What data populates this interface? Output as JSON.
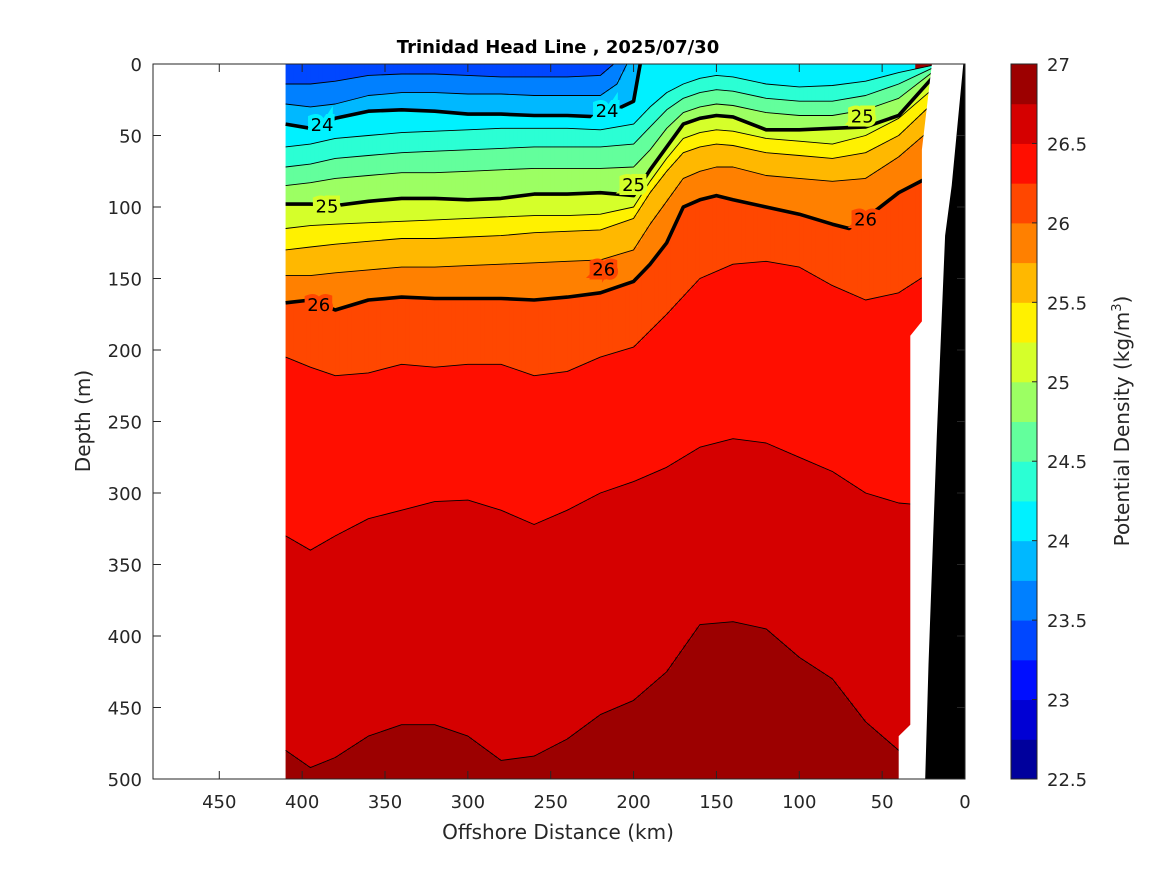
{
  "chart_data": {
    "type": "contour",
    "title": "Trinidad Head Line , 2025/07/30",
    "xlabel": "Offshore Distance (km)",
    "ylabel": "Depth (m)",
    "colorbar_label": "Potential Density (kg/m",
    "colorbar_label_superscript": "3",
    "colorbar_label_suffix": ")",
    "xlim": [
      490,
      0
    ],
    "x_reversed": true,
    "ylim": [
      0,
      500
    ],
    "y_reversed": true,
    "xticks": [
      450,
      400,
      350,
      300,
      250,
      200,
      150,
      100,
      50,
      0
    ],
    "yticks": [
      0,
      50,
      100,
      150,
      200,
      250,
      300,
      350,
      400,
      450,
      500
    ],
    "colorbar_range": [
      22.5,
      27
    ],
    "colorbar_step": 0.25,
    "colorbar_ticks": [
      22.5,
      23,
      23.5,
      24,
      24.5,
      25,
      25.5,
      26,
      26.5,
      27
    ],
    "colormap": "jet",
    "grid": false,
    "data_x_extent": [
      410,
      20
    ],
    "contour_levels": [
      {
        "level": 26.5,
        "x": [
          410,
          395,
          380,
          360,
          340,
          320,
          300,
          280,
          260,
          240,
          220,
          200,
          180,
          160,
          140,
          120,
          100,
          80,
          60,
          40,
          30
        ],
        "y": [
          330,
          340,
          330,
          318,
          312,
          306,
          305,
          312,
          322,
          312,
          300,
          292,
          282,
          268,
          262,
          265,
          275,
          285,
          300,
          307,
          308
        ]
      },
      {
        "level": 26.75,
        "x": [
          410,
          395,
          380,
          360,
          340,
          320,
          300,
          280,
          260,
          240,
          220,
          200,
          180,
          160,
          140,
          120,
          100,
          80,
          60,
          40,
          30
        ],
        "y": [
          480,
          492,
          485,
          470,
          462,
          462,
          470,
          487,
          484,
          472,
          455,
          445,
          425,
          392,
          390,
          395,
          415,
          430,
          460,
          480,
          485
        ]
      },
      {
        "level": 26.25,
        "x": [
          410,
          395,
          380,
          360,
          340,
          320,
          300,
          280,
          260,
          240,
          220,
          200,
          180,
          160,
          140,
          120,
          100,
          80,
          60,
          40,
          20
        ],
        "y": [
          205,
          212,
          218,
          216,
          210,
          212,
          210,
          210,
          218,
          215,
          205,
          198,
          175,
          150,
          140,
          138,
          142,
          155,
          165,
          160,
          145
        ]
      },
      {
        "level": 26,
        "x": [
          410,
          395,
          380,
          360,
          340,
          320,
          300,
          280,
          260,
          240,
          220,
          200,
          190,
          180,
          170,
          160,
          150,
          140,
          120,
          100,
          80,
          70,
          60,
          40,
          20
        ],
        "y": [
          167,
          165,
          172,
          165,
          163,
          164,
          164,
          164,
          165,
          163,
          160,
          152,
          140,
          125,
          100,
          95,
          92,
          95,
          100,
          105,
          112,
          115,
          108,
          90,
          78
        ],
        "labels": [
          {
            "x": 390,
            "y": 168,
            "text": "26"
          },
          {
            "x": 218,
            "y": 143,
            "text": "26"
          },
          {
            "x": 60,
            "y": 108,
            "text": "26"
          }
        ]
      },
      {
        "level": 25.75,
        "x": [
          410,
          395,
          380,
          360,
          340,
          320,
          300,
          280,
          260,
          240,
          220,
          200,
          190,
          180,
          170,
          160,
          150,
          140,
          120,
          100,
          80,
          60,
          40,
          20
        ],
        "y": [
          148,
          148,
          146,
          144,
          142,
          142,
          141,
          140,
          139,
          138,
          137,
          130,
          112,
          96,
          80,
          75,
          72,
          72,
          78,
          80,
          82,
          80,
          65,
          45
        ]
      },
      {
        "level": 25.5,
        "x": [
          410,
          395,
          380,
          360,
          340,
          320,
          300,
          280,
          260,
          240,
          220,
          200,
          190,
          180,
          170,
          160,
          150,
          140,
          120,
          100,
          80,
          60,
          40,
          20
        ],
        "y": [
          130,
          128,
          126,
          124,
          122,
          122,
          121,
          120,
          118,
          117,
          116,
          108,
          90,
          75,
          62,
          58,
          56,
          57,
          62,
          64,
          66,
          62,
          50,
          28
        ]
      },
      {
        "level": 25.25,
        "x": [
          410,
          395,
          380,
          360,
          340,
          320,
          300,
          280,
          260,
          240,
          220,
          200,
          190,
          180,
          170,
          160,
          150,
          140,
          120,
          100,
          80,
          60,
          40,
          20
        ],
        "y": [
          115,
          113,
          112,
          111,
          110,
          109,
          108,
          107,
          106,
          106,
          105,
          100,
          82,
          66,
          52,
          48,
          46,
          47,
          52,
          54,
          56,
          50,
          38,
          18
        ]
      },
      {
        "level": 25,
        "x": [
          410,
          395,
          380,
          360,
          340,
          320,
          300,
          280,
          260,
          240,
          220,
          200,
          190,
          180,
          170,
          160,
          150,
          140,
          120,
          100,
          80,
          60,
          40,
          20
        ],
        "y": [
          98,
          98,
          99,
          96,
          94,
          94,
          95,
          94,
          91,
          91,
          90,
          92,
          74,
          58,
          42,
          38,
          36,
          37,
          46,
          46,
          45,
          44,
          36,
          10
        ],
        "labels": [
          {
            "x": 385,
            "y": 99,
            "text": "25"
          },
          {
            "x": 200,
            "y": 84,
            "text": "25"
          },
          {
            "x": 62,
            "y": 36,
            "text": "25"
          }
        ]
      },
      {
        "level": 24.75,
        "x": [
          410,
          395,
          380,
          360,
          340,
          320,
          300,
          280,
          260,
          240,
          220,
          200,
          190,
          180,
          170,
          160,
          150,
          140,
          120,
          100,
          80,
          60,
          40,
          20
        ],
        "y": [
          85,
          83,
          80,
          78,
          76,
          76,
          75,
          74,
          73,
          73,
          73,
          72,
          60,
          45,
          34,
          30,
          28,
          29,
          34,
          36,
          36,
          32,
          24,
          6
        ]
      },
      {
        "level": 24.5,
        "x": [
          410,
          395,
          380,
          360,
          340,
          320,
          300,
          280,
          260,
          240,
          220,
          200,
          190,
          180,
          170,
          160,
          150,
          140,
          120,
          100,
          80,
          60,
          40,
          20
        ],
        "y": [
          72,
          70,
          66,
          64,
          62,
          61,
          60,
          59,
          58,
          58,
          58,
          56,
          44,
          32,
          24,
          20,
          18,
          19,
          24,
          26,
          26,
          22,
          14,
          3
        ]
      },
      {
        "level": 24.25,
        "x": [
          410,
          395,
          380,
          360,
          340,
          320,
          300,
          280,
          260,
          240,
          220,
          200,
          190,
          180,
          170,
          160,
          150,
          140,
          120,
          100,
          80,
          60,
          40,
          20
        ],
        "y": [
          58,
          56,
          52,
          50,
          48,
          47,
          46,
          45,
          45,
          45,
          46,
          42,
          30,
          20,
          14,
          10,
          8,
          9,
          14,
          16,
          15,
          12,
          6,
          1
        ]
      },
      {
        "level": 24,
        "x": [
          410,
          395,
          380,
          360,
          340,
          320,
          300,
          280,
          260,
          240,
          220,
          200,
          196
        ],
        "y": [
          42,
          45,
          38,
          33,
          32,
          33,
          35,
          35,
          36,
          36,
          37,
          26,
          0
        ],
        "labels": [
          {
            "x": 388,
            "y": 42,
            "text": "24"
          },
          {
            "x": 216,
            "y": 32,
            "text": "24"
          }
        ]
      },
      {
        "level": 23.75,
        "x": [
          410,
          395,
          380,
          360,
          340,
          320,
          300,
          280,
          260,
          240,
          220,
          210,
          204
        ],
        "y": [
          28,
          30,
          28,
          22,
          20,
          20,
          21,
          21,
          22,
          22,
          22,
          14,
          0
        ]
      },
      {
        "level": 23.5,
        "x": [
          410,
          395,
          380,
          360,
          340,
          320,
          300,
          280,
          260,
          240,
          220,
          212
        ],
        "y": [
          14,
          14,
          12,
          8,
          7,
          7,
          8,
          9,
          9,
          9,
          8,
          0
        ]
      }
    ],
    "bathymetry": {
      "label": "seafloor",
      "color": "#000000"
    },
    "no_data_region": {
      "x_range": [
        490,
        410
      ]
    }
  }
}
